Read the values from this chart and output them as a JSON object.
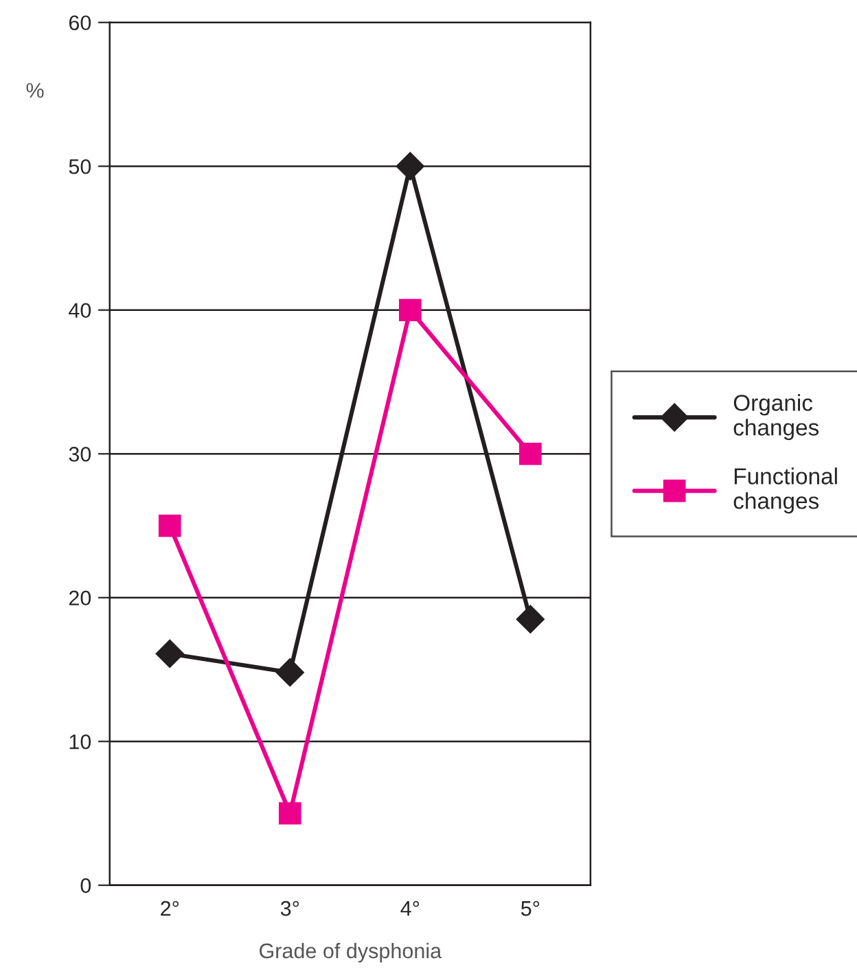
{
  "chart_data": {
    "type": "line",
    "xlabel": "Grade of dysphonia",
    "ylabel": "%",
    "categories": [
      "2°",
      "3°",
      "4°",
      "5°"
    ],
    "series": [
      {
        "name": "Organic\nchanges",
        "color": "#231f20",
        "marker": "diamond",
        "values": [
          16.1,
          14.8,
          50,
          18.5
        ]
      },
      {
        "name": "Functional\nchanges",
        "color": "#ec008c",
        "marker": "square",
        "values": [
          25,
          5,
          40,
          30
        ]
      }
    ],
    "ylim": [
      0,
      60
    ],
    "yticks": [
      0,
      10,
      20,
      30,
      40,
      50,
      60
    ],
    "grid": "y",
    "legend": "right"
  }
}
